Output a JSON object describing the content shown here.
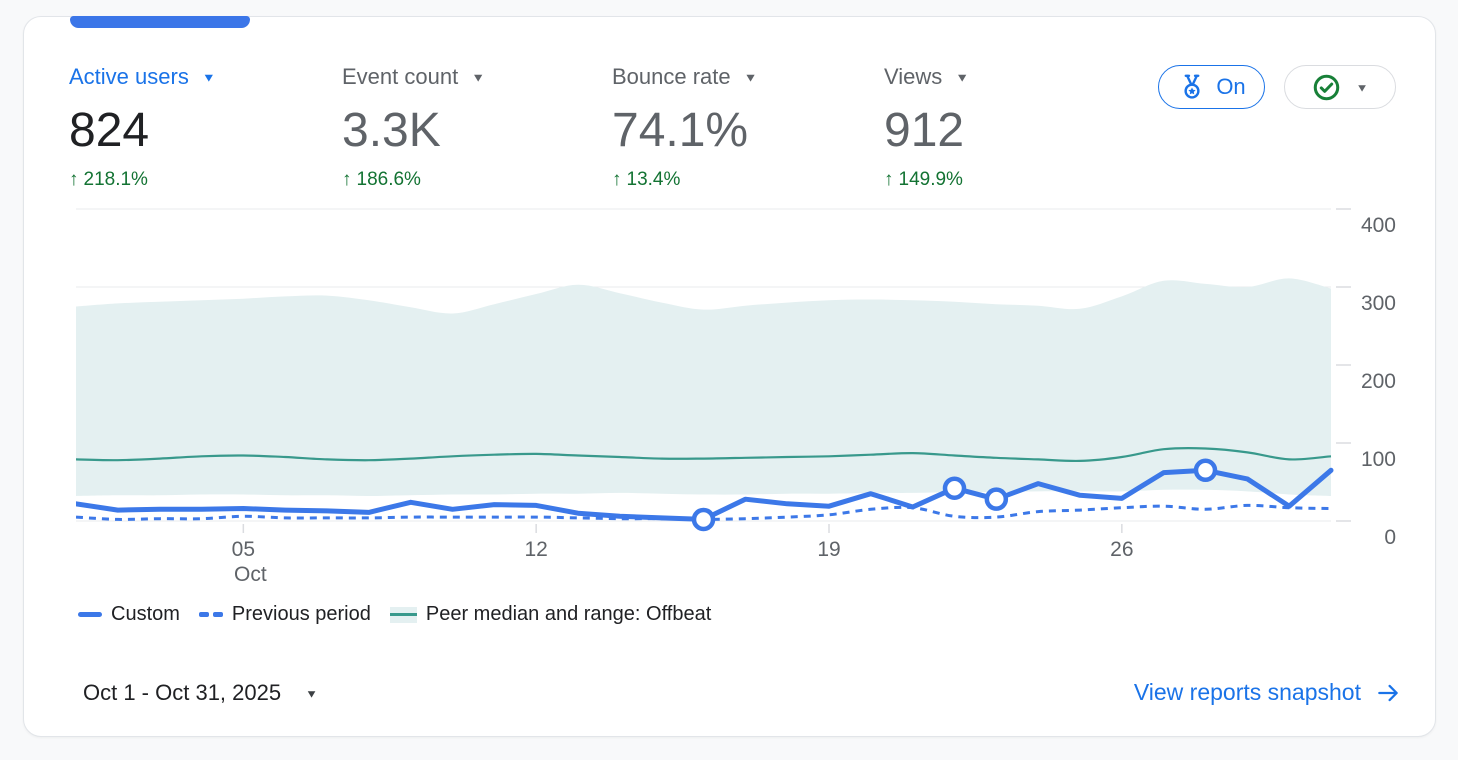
{
  "metrics": [
    {
      "label": "Active users",
      "value": "824",
      "delta": "218.1%",
      "selected": true
    },
    {
      "label": "Event count",
      "value": "3.3K",
      "delta": "186.6%",
      "selected": false
    },
    {
      "label": "Bounce rate",
      "value": "74.1%",
      "delta": "13.4%",
      "selected": false
    },
    {
      "label": "Views",
      "value": "912",
      "delta": "149.9%",
      "selected": false
    }
  ],
  "benchmark": {
    "label": "On"
  },
  "icons": {
    "up_arrow": "↑",
    "caret_down": "▼"
  },
  "legend": [
    "Custom",
    "Previous period",
    "Peer median and range: Offbeat"
  ],
  "footer": {
    "date_range": "Oct 1 - Oct 31, 2025",
    "link_label": "View reports snapshot"
  },
  "colors": {
    "accent_blue": "#1a73e8",
    "chart_blue": "#3c78e8",
    "teal_line": "#38998c",
    "band_fill": "#e4f0f1",
    "delta_green": "#137333",
    "status_green": "#188038",
    "grid": "#e9ebee",
    "tick": "#dadce0",
    "axis_text": "#5f6368"
  },
  "chart_data": {
    "type": "line",
    "x_unit": "day of October 2025",
    "x": [
      1,
      2,
      3,
      4,
      5,
      6,
      7,
      8,
      9,
      10,
      11,
      12,
      13,
      14,
      15,
      16,
      17,
      18,
      19,
      20,
      21,
      22,
      23,
      24,
      25,
      26,
      27,
      28,
      29,
      30,
      31
    ],
    "series": [
      {
        "name": "Custom",
        "style": "solid",
        "color": "#3c78e8",
        "values": [
          22,
          14,
          15,
          15,
          16,
          14,
          13,
          11,
          24,
          15,
          21,
          20,
          10,
          6,
          4,
          2,
          28,
          22,
          19,
          35,
          18,
          42,
          28,
          48,
          33,
          29,
          62,
          65,
          54,
          19,
          65
        ],
        "marker_days": [
          16,
          22,
          23,
          28
        ]
      },
      {
        "name": "Previous period",
        "style": "dashed",
        "color": "#3c78e8",
        "values": [
          5,
          2,
          3,
          3,
          6,
          4,
          4,
          4,
          5,
          5,
          5,
          5,
          4,
          3,
          3,
          2,
          3,
          5,
          8,
          15,
          17,
          6,
          5,
          12,
          14,
          17,
          19,
          15,
          20,
          17,
          16
        ]
      },
      {
        "name": "Peer median",
        "style": "solid",
        "color": "#38998c",
        "values": [
          79,
          78,
          80,
          83,
          84,
          82,
          79,
          78,
          80,
          83,
          85,
          86,
          84,
          82,
          80,
          80,
          81,
          82,
          83,
          85,
          87,
          84,
          81,
          79,
          77,
          82,
          92,
          93,
          88,
          79,
          83
        ]
      }
    ],
    "band": {
      "name": "Peer range: Offbeat",
      "color": "#e4f0f1",
      "top": [
        275,
        279,
        281,
        283,
        285,
        288,
        289,
        283,
        274,
        266,
        278,
        291,
        303,
        292,
        280,
        271,
        276,
        280,
        283,
        284,
        283,
        281,
        278,
        276,
        272,
        288,
        308,
        304,
        300,
        311,
        298
      ],
      "bottom": [
        32,
        33,
        33,
        34,
        34,
        33,
        33,
        32,
        33,
        34,
        34,
        35,
        35,
        36,
        35,
        34,
        34,
        35,
        35,
        36,
        36,
        37,
        37,
        38,
        38,
        38,
        40,
        40,
        38,
        34,
        32
      ]
    },
    "ylim": [
      0,
      400
    ],
    "yticks": [
      0,
      100,
      200,
      300,
      400
    ],
    "xticks": [
      {
        "day": 5,
        "label": "05",
        "sublabel": "Oct"
      },
      {
        "day": 12,
        "label": "12"
      },
      {
        "day": 19,
        "label": "19"
      },
      {
        "day": 26,
        "label": "26"
      }
    ],
    "grid": "horizontal",
    "legend_position": "bottom"
  }
}
